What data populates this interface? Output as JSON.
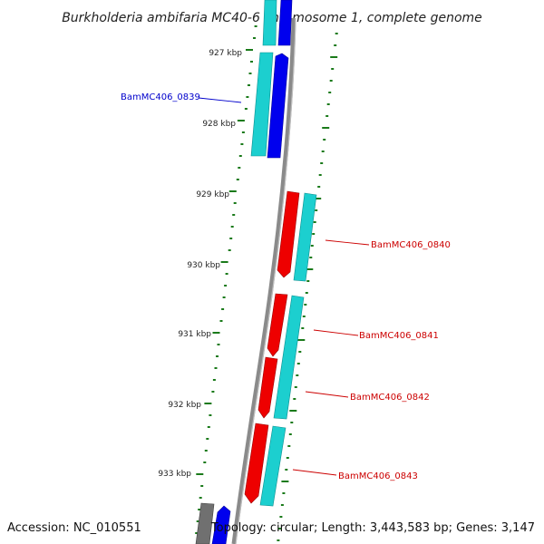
{
  "title": "Burkholderia ambifaria MC40-6 chromosome 1, complete genome",
  "footer": {
    "accession": "Accession: NC_010551",
    "topology": "Topology: circular; Length: 3,443,583 bp; Genes: 3,147"
  },
  "colors": {
    "forward_gene": "#0000ee",
    "reverse_gene": "#ee0000",
    "cds": "#1ccfcf",
    "ticks": "#1a7a1a",
    "backbone": "#8a8a8a"
  },
  "scale_ticks": [
    "927 kbp",
    "928 kbp",
    "929 kbp",
    "930 kbp",
    "931 kbp",
    "932 kbp",
    "933 kbp"
  ],
  "gene_labels": [
    {
      "text": "BamMC406_0839",
      "strand": "forward"
    },
    {
      "text": "BamMC406_0840",
      "strand": "reverse"
    },
    {
      "text": "BamMC406_0841",
      "strand": "reverse"
    },
    {
      "text": "BamMC406_0842",
      "strand": "reverse"
    },
    {
      "text": "BamMC406_0843",
      "strand": "reverse"
    }
  ]
}
